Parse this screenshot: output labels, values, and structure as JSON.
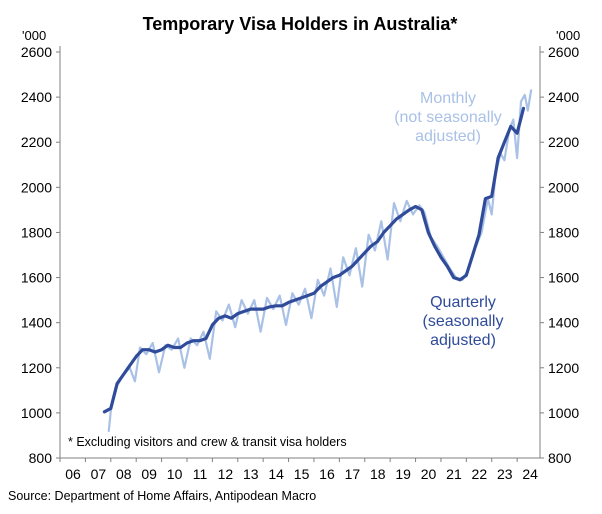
{
  "chart_data": {
    "type": "line",
    "title": "Temporary Visa Holders in Australia*",
    "unit_left": "'000",
    "unit_right": "'000",
    "footnote": "* Excluding visitors and crew & transit visa holders",
    "source": "Source: Department of Home Affairs, Antipodean Macro",
    "ylim": [
      800,
      2600
    ],
    "y_ticks": [
      800,
      1000,
      1200,
      1400,
      1600,
      1800,
      2000,
      2200,
      2400,
      2600
    ],
    "xlim": [
      2006,
      2024.9
    ],
    "x_tick_labels": [
      "06",
      "07",
      "08",
      "09",
      "10",
      "11",
      "12",
      "13",
      "14",
      "15",
      "16",
      "17",
      "18",
      "19",
      "20",
      "21",
      "22",
      "23",
      "24"
    ],
    "x_tick_years": [
      2006,
      2007,
      2008,
      2009,
      2010,
      2011,
      2012,
      2013,
      2014,
      2015,
      2016,
      2017,
      2018,
      2019,
      2020,
      2021,
      2022,
      2023,
      2024
    ],
    "colors": {
      "quarterly": "#2f4b9a",
      "monthly": "#a9c1e6",
      "axis": "#808080"
    },
    "series": [
      {
        "name": "Monthly\n(not seasonally\nadjusted)",
        "label_lines": [
          "Monthly",
          "(not seasonally",
          "adjusted)"
        ],
        "points": [
          [
            2007.92,
            920
          ],
          [
            2008.0,
            1010
          ],
          [
            2008.25,
            1120
          ],
          [
            2008.5,
            1170
          ],
          [
            2008.75,
            1200
          ],
          [
            2008.95,
            1140
          ],
          [
            2009.15,
            1290
          ],
          [
            2009.4,
            1260
          ],
          [
            2009.65,
            1310
          ],
          [
            2009.9,
            1180
          ],
          [
            2010.15,
            1300
          ],
          [
            2010.4,
            1280
          ],
          [
            2010.65,
            1330
          ],
          [
            2010.9,
            1200
          ],
          [
            2011.15,
            1330
          ],
          [
            2011.4,
            1300
          ],
          [
            2011.65,
            1360
          ],
          [
            2011.9,
            1240
          ],
          [
            2012.15,
            1450
          ],
          [
            2012.4,
            1410
          ],
          [
            2012.65,
            1480
          ],
          [
            2012.9,
            1380
          ],
          [
            2013.15,
            1500
          ],
          [
            2013.4,
            1440
          ],
          [
            2013.65,
            1500
          ],
          [
            2013.9,
            1360
          ],
          [
            2014.15,
            1510
          ],
          [
            2014.4,
            1460
          ],
          [
            2014.65,
            1520
          ],
          [
            2014.9,
            1390
          ],
          [
            2015.15,
            1530
          ],
          [
            2015.4,
            1480
          ],
          [
            2015.65,
            1550
          ],
          [
            2015.9,
            1420
          ],
          [
            2016.15,
            1590
          ],
          [
            2016.4,
            1520
          ],
          [
            2016.65,
            1640
          ],
          [
            2016.9,
            1470
          ],
          [
            2017.15,
            1690
          ],
          [
            2017.4,
            1610
          ],
          [
            2017.65,
            1730
          ],
          [
            2017.9,
            1560
          ],
          [
            2018.15,
            1790
          ],
          [
            2018.4,
            1720
          ],
          [
            2018.65,
            1850
          ],
          [
            2018.9,
            1680
          ],
          [
            2019.15,
            1930
          ],
          [
            2019.4,
            1850
          ],
          [
            2019.65,
            1940
          ],
          [
            2019.9,
            1880
          ],
          [
            2020.15,
            1920
          ],
          [
            2020.35,
            1890
          ],
          [
            2020.6,
            1780
          ],
          [
            2020.85,
            1740
          ],
          [
            2021.1,
            1690
          ],
          [
            2021.35,
            1640
          ],
          [
            2021.6,
            1600
          ],
          [
            2021.85,
            1590
          ],
          [
            2022.1,
            1640
          ],
          [
            2022.35,
            1730
          ],
          [
            2022.6,
            1800
          ],
          [
            2022.85,
            1950
          ],
          [
            2023.0,
            1880
          ],
          [
            2023.15,
            2060
          ],
          [
            2023.35,
            2150
          ],
          [
            2023.5,
            2120
          ],
          [
            2023.7,
            2260
          ],
          [
            2023.85,
            2300
          ],
          [
            2024.0,
            2130
          ],
          [
            2024.15,
            2380
          ],
          [
            2024.3,
            2410
          ],
          [
            2024.42,
            2340
          ],
          [
            2024.55,
            2430
          ]
        ]
      },
      {
        "name": "Quarterly\n(seasonally\nadjusted)",
        "label_lines": [
          "Quarterly",
          "(seasonally",
          "adjusted)"
        ],
        "points": [
          [
            2007.75,
            1005
          ],
          [
            2008.0,
            1020
          ],
          [
            2008.25,
            1130
          ],
          [
            2008.5,
            1170
          ],
          [
            2008.75,
            1210
          ],
          [
            2009.0,
            1250
          ],
          [
            2009.25,
            1280
          ],
          [
            2009.5,
            1280
          ],
          [
            2009.75,
            1270
          ],
          [
            2010.0,
            1280
          ],
          [
            2010.25,
            1300
          ],
          [
            2010.5,
            1290
          ],
          [
            2010.75,
            1290
          ],
          [
            2011.0,
            1310
          ],
          [
            2011.25,
            1320
          ],
          [
            2011.5,
            1320
          ],
          [
            2011.75,
            1330
          ],
          [
            2012.0,
            1390
          ],
          [
            2012.25,
            1420
          ],
          [
            2012.5,
            1430
          ],
          [
            2012.75,
            1420
          ],
          [
            2013.0,
            1440
          ],
          [
            2013.25,
            1450
          ],
          [
            2013.5,
            1460
          ],
          [
            2013.75,
            1460
          ],
          [
            2014.0,
            1460
          ],
          [
            2014.25,
            1470
          ],
          [
            2014.5,
            1475
          ],
          [
            2014.75,
            1475
          ],
          [
            2015.0,
            1490
          ],
          [
            2015.25,
            1500
          ],
          [
            2015.5,
            1510
          ],
          [
            2015.75,
            1520
          ],
          [
            2016.0,
            1530
          ],
          [
            2016.25,
            1560
          ],
          [
            2016.5,
            1580
          ],
          [
            2016.75,
            1600
          ],
          [
            2017.0,
            1610
          ],
          [
            2017.25,
            1630
          ],
          [
            2017.5,
            1650
          ],
          [
            2017.75,
            1680
          ],
          [
            2018.0,
            1710
          ],
          [
            2018.25,
            1740
          ],
          [
            2018.5,
            1760
          ],
          [
            2018.75,
            1800
          ],
          [
            2019.0,
            1830
          ],
          [
            2019.25,
            1860
          ],
          [
            2019.5,
            1880
          ],
          [
            2019.75,
            1900
          ],
          [
            2020.0,
            1915
          ],
          [
            2020.25,
            1900
          ],
          [
            2020.5,
            1800
          ],
          [
            2020.75,
            1740
          ],
          [
            2021.0,
            1690
          ],
          [
            2021.25,
            1650
          ],
          [
            2021.5,
            1600
          ],
          [
            2021.75,
            1590
          ],
          [
            2022.0,
            1610
          ],
          [
            2022.25,
            1700
          ],
          [
            2022.5,
            1790
          ],
          [
            2022.75,
            1950
          ],
          [
            2023.0,
            1960
          ],
          [
            2023.25,
            2130
          ],
          [
            2023.5,
            2200
          ],
          [
            2023.75,
            2270
          ],
          [
            2024.0,
            2240
          ],
          [
            2024.25,
            2350
          ]
        ]
      }
    ]
  }
}
